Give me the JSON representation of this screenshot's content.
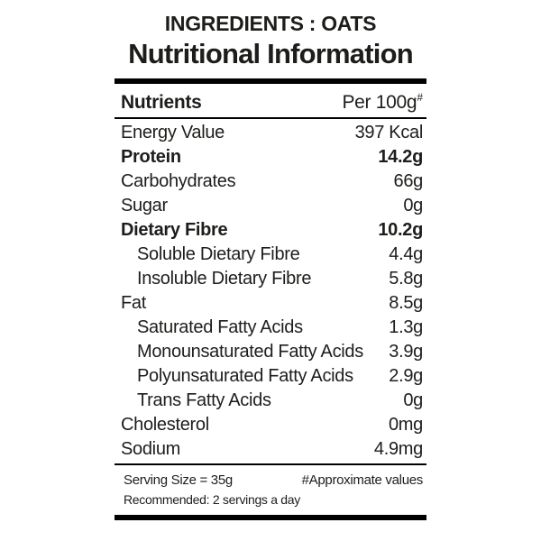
{
  "header": {
    "ingredients_label": "INGREDIENTS : OATS",
    "title": "Nutritional Information"
  },
  "table": {
    "columns": {
      "nutrient": "Nutrients",
      "per_100g": "Per 100g",
      "per_100g_superscript": "#"
    },
    "rows": [
      {
        "label": "Energy Value",
        "value": "397 Kcal",
        "bold": false,
        "indent": false
      },
      {
        "label": "Protein",
        "value": "14.2g",
        "bold": true,
        "indent": false
      },
      {
        "label": "Carbohydrates",
        "value": "66g",
        "bold": false,
        "indent": false
      },
      {
        "label": "Sugar",
        "value": "0g",
        "bold": false,
        "indent": false
      },
      {
        "label": "Dietary Fibre",
        "value": "10.2g",
        "bold": true,
        "indent": false
      },
      {
        "label": "Soluble Dietary Fibre",
        "value": "4.4g",
        "bold": false,
        "indent": true
      },
      {
        "label": "Insoluble Dietary Fibre",
        "value": "5.8g",
        "bold": false,
        "indent": true
      },
      {
        "label": "Fat",
        "value": "8.5g",
        "bold": false,
        "indent": false
      },
      {
        "label": "Saturated Fatty Acids",
        "value": "1.3g",
        "bold": false,
        "indent": true
      },
      {
        "label": "Monounsaturated Fatty Acids",
        "value": "3.9g",
        "bold": false,
        "indent": true
      },
      {
        "label": "Polyunsaturated Fatty Acids",
        "value": "2.9g",
        "bold": false,
        "indent": true
      },
      {
        "label": "Trans Fatty Acids",
        "value": "0g",
        "bold": false,
        "indent": true
      },
      {
        "label": "Cholesterol",
        "value": "0mg",
        "bold": false,
        "indent": false
      },
      {
        "label": "Sodium",
        "value": "4.9mg",
        "bold": false,
        "indent": false
      }
    ]
  },
  "footer": {
    "serving_size": "Serving Size = 35g",
    "approximate_note": "#Approximate values",
    "recommended": "Recommended: 2 servings a day"
  },
  "colors": {
    "text": "#1d1d1b",
    "line": "#000000",
    "background": "#ffffff"
  }
}
